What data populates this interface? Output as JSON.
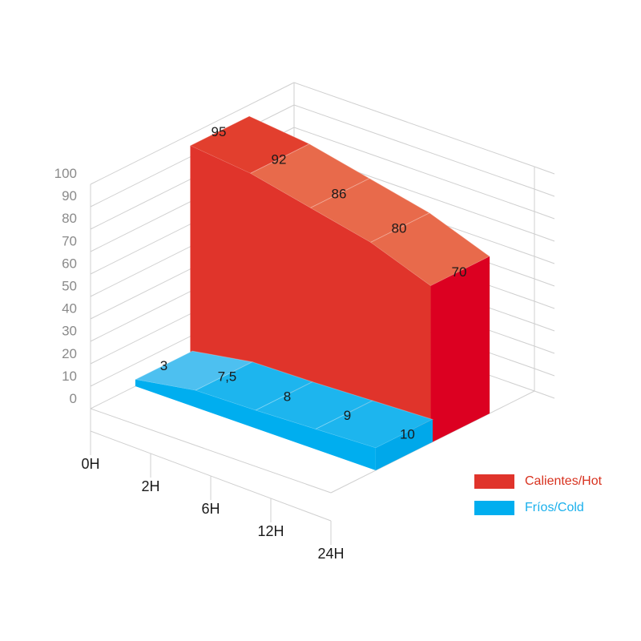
{
  "chart_data": {
    "type": "area",
    "variant": "3d",
    "categories": [
      "0H",
      "2H",
      "6H",
      "12H",
      "24H"
    ],
    "ylim": [
      0,
      100
    ],
    "yticks": [
      0,
      10,
      20,
      30,
      40,
      50,
      60,
      70,
      80,
      90,
      100
    ],
    "grid": true,
    "legend_position": "bottom-right",
    "series": [
      {
        "name": "Calientes/Hot",
        "values": [
          95,
          92,
          86,
          80,
          70
        ],
        "labels": [
          "95",
          "92",
          "86",
          "80",
          "70"
        ],
        "color": "#e0342b"
      },
      {
        "name": "Fríos/Cold",
        "values": [
          3,
          7.5,
          8,
          9,
          10
        ],
        "labels": [
          "3",
          "7,5",
          "8",
          "9",
          "10"
        ],
        "color": "#00aeef"
      }
    ]
  }
}
